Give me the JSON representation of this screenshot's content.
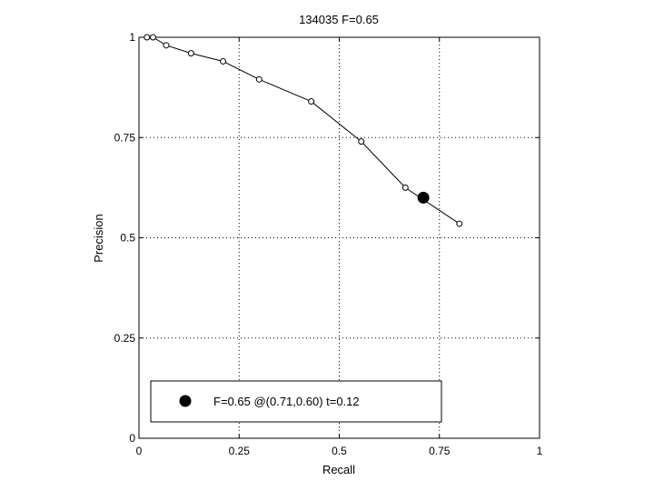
{
  "chart_data": {
    "type": "line",
    "title": "134035 F=0.65",
    "xlabel": "Recall",
    "ylabel": "Precision",
    "xlim": [
      0,
      1
    ],
    "ylim": [
      0,
      1
    ],
    "xticks": [
      0,
      0.25,
      0.5,
      0.75,
      1
    ],
    "yticks": [
      0,
      0.25,
      0.5,
      0.75,
      1
    ],
    "xtick_labels": [
      "0",
      "0.25",
      "0.5",
      "0.75",
      "1"
    ],
    "ytick_labels": [
      "0",
      "0.25",
      "0.5",
      "0.75",
      "1"
    ],
    "grid": true,
    "series": [
      {
        "marker": "open-circle",
        "color": "#000000",
        "x": [
          0.02,
          0.035,
          0.068,
          0.13,
          0.21,
          0.3,
          0.43,
          0.555,
          0.665,
          0.8
        ],
        "y": [
          1.0,
          1.0,
          0.98,
          0.96,
          0.94,
          0.895,
          0.84,
          0.74,
          0.625,
          0.535
        ]
      }
    ],
    "highlight_point": {
      "x": 0.71,
      "y": 0.6,
      "marker": "filled-circle",
      "color": "#000000"
    },
    "legend": {
      "placement": "bottom-left",
      "entries": [
        {
          "label": "F=0.65 @(0.71,0.60) t=0.12",
          "marker": "filled-circle"
        }
      ]
    }
  }
}
